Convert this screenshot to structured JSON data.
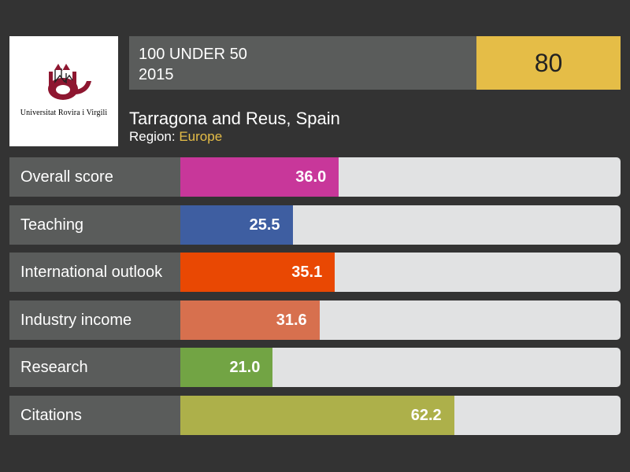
{
  "logo": {
    "name": "Universitat Rovira i Virgili"
  },
  "ranking": {
    "title": "100 UNDER 50",
    "year": "2015",
    "rank": "80"
  },
  "location": "Tarragona and Reus, Spain",
  "region": {
    "label": "Region:",
    "value": "Europe"
  },
  "chart_data": {
    "type": "bar",
    "orientation": "horizontal",
    "categories": [
      "Overall score",
      "Teaching",
      "International outlook",
      "Industry income",
      "Research",
      "Citations"
    ],
    "values": [
      36.0,
      25.5,
      35.1,
      31.6,
      21.0,
      62.2
    ],
    "value_labels": [
      "36.0",
      "25.5",
      "35.1",
      "31.6",
      "21.0",
      "62.2"
    ],
    "colors": [
      "#c8379a",
      "#3e5ea1",
      "#e94803",
      "#d7704e",
      "#72a444",
      "#adb04a"
    ],
    "xlim": [
      0,
      100
    ],
    "title": "",
    "xlabel": "",
    "ylabel": "",
    "grid": false,
    "legend": false
  },
  "colors": {
    "background": "#333333",
    "panel": "#5a5c5b",
    "accent": "#e5bd47",
    "track": "#e1e2e3"
  }
}
